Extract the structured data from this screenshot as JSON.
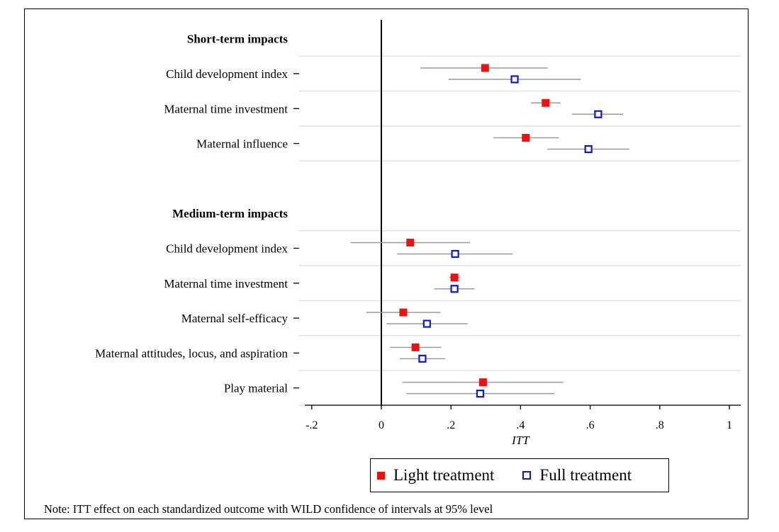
{
  "chart_data": {
    "type": "scatter",
    "subtype": "coefficient-plot-with-confidence-intervals",
    "xlabel": "ITT",
    "xlim": [
      -0.22,
      1.03
    ],
    "xticks": [
      -0.2,
      0,
      0.2,
      0.4,
      0.6,
      0.8,
      1
    ],
    "xtick_labels": [
      "-.2",
      "0",
      ".2",
      ".4",
      ".6",
      ".8",
      "1"
    ],
    "reference_line_x": 0,
    "legend_position": "bottom",
    "series": [
      {
        "name": "Light treatment",
        "marker": "filled-square",
        "color": "#ee1111"
      },
      {
        "name": "Full treatment",
        "marker": "hollow-square",
        "color": "#0a18d6"
      }
    ],
    "groups": [
      {
        "header": "Short-term impacts",
        "rows": [
          {
            "label": "Child development index",
            "light": {
              "estimate": 0.298,
              "ci": [
                0.112,
                0.478
              ]
            },
            "full": {
              "estimate": 0.383,
              "ci": [
                0.193,
                0.573
              ]
            }
          },
          {
            "label": "Maternal time investment",
            "light": {
              "estimate": 0.472,
              "ci": [
                0.43,
                0.515
              ]
            },
            "full": {
              "estimate": 0.623,
              "ci": [
                0.548,
                0.695
              ]
            }
          },
          {
            "label": "Maternal influence",
            "light": {
              "estimate": 0.415,
              "ci": [
                0.322,
                0.51
              ]
            },
            "full": {
              "estimate": 0.595,
              "ci": [
                0.477,
                0.713
              ]
            }
          }
        ]
      },
      {
        "header": "Medium-term impacts",
        "rows": [
          {
            "label": "Child development index",
            "light": {
              "estimate": 0.083,
              "ci": [
                -0.088,
                0.255
              ]
            },
            "full": {
              "estimate": 0.212,
              "ci": [
                0.045,
                0.378
              ]
            }
          },
          {
            "label": "Maternal time investment",
            "light": {
              "estimate": 0.21,
              "ci": [
                0.195,
                0.225
              ]
            },
            "full": {
              "estimate": 0.21,
              "ci": [
                0.152,
                0.268
              ]
            }
          },
          {
            "label": "Maternal self-efficacy",
            "light": {
              "estimate": 0.063,
              "ci": [
                -0.043,
                0.17
              ]
            },
            "full": {
              "estimate": 0.131,
              "ci": [
                0.015,
                0.248
              ]
            }
          },
          {
            "label": "Maternal attitudes, locus, and aspiration",
            "light": {
              "estimate": 0.098,
              "ci": [
                0.025,
                0.172
              ]
            },
            "full": {
              "estimate": 0.118,
              "ci": [
                0.053,
                0.183
              ]
            }
          },
          {
            "label": "Play material",
            "light": {
              "estimate": 0.292,
              "ci": [
                0.06,
                0.523
              ]
            },
            "full": {
              "estimate": 0.284,
              "ci": [
                0.072,
                0.497
              ]
            }
          }
        ]
      }
    ]
  },
  "note": "Note: ITT effect on each standardized outcome with WILD confidence of intervals at 95% level"
}
